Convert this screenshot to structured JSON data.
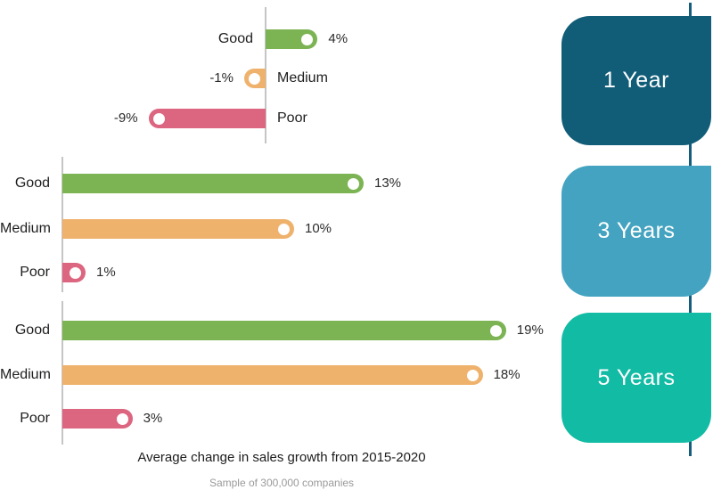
{
  "title": "Average change in sales growth from 2015-2020",
  "subtitle": "Sample of 300,000 companies",
  "colors": {
    "good": "#7CB454",
    "medium": "#EFB26C",
    "poor": "#DC6580",
    "panel_colors": [
      "#115C77",
      "#44A3C0",
      "#12BBA4"
    ],
    "timeline": "#155D7C",
    "axis_line": "#C5C5C5"
  },
  "panels": [
    {
      "label": "1 Year"
    },
    {
      "label": "3 Years"
    },
    {
      "label": "5 Years"
    }
  ],
  "chart_data": [
    {
      "type": "bar",
      "group": "1 Year",
      "orientation": "horizontal",
      "categories": [
        "Good",
        "Medium",
        "Poor"
      ],
      "values": [
        4,
        -1,
        -9
      ],
      "display_values": [
        "4%",
        "-1%",
        "-9%"
      ],
      "unit": "%",
      "series_color_keys": [
        "good",
        "medium",
        "poor"
      ],
      "grid": false,
      "legend": false
    },
    {
      "type": "bar",
      "group": "3 Years",
      "orientation": "horizontal",
      "categories": [
        "Good",
        "Medium",
        "Poor"
      ],
      "values": [
        13,
        10,
        1
      ],
      "display_values": [
        "13%",
        "10%",
        "1%"
      ],
      "unit": "%",
      "series_color_keys": [
        "good",
        "medium",
        "poor"
      ],
      "grid": false,
      "legend": false
    },
    {
      "type": "bar",
      "group": "5 Years",
      "orientation": "horizontal",
      "categories": [
        "Good",
        "Medium",
        "Poor"
      ],
      "values": [
        19,
        18,
        3
      ],
      "display_values": [
        "19%",
        "18%",
        "3%"
      ],
      "unit": "%",
      "series_color_keys": [
        "good",
        "medium",
        "poor"
      ],
      "grid": false,
      "legend": false
    }
  ]
}
